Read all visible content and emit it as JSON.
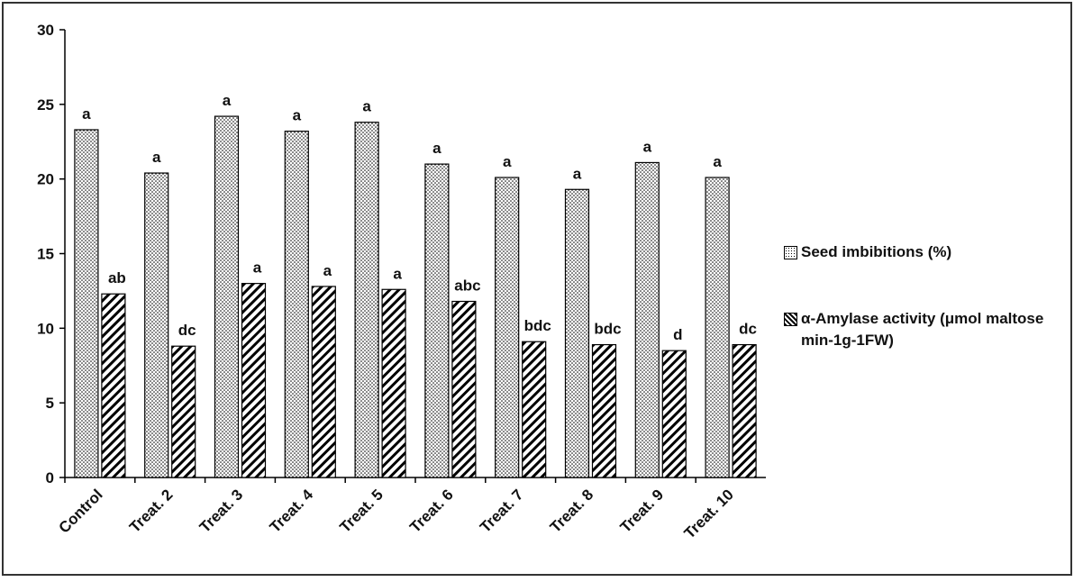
{
  "chart_data": {
    "type": "bar",
    "categories": [
      "Control",
      "Treat. 2",
      "Treat. 3",
      "Treat. 4",
      "Treat. 5",
      "Treat. 6",
      "Treat. 7",
      "Treat. 8",
      "Treat. 9",
      "Treat. 10"
    ],
    "series": [
      {
        "name": "Seed imbibitions (%)",
        "color": "#000000",
        "values": [
          23.3,
          20.4,
          24.2,
          23.2,
          23.8,
          21.0,
          20.1,
          19.3,
          21.1,
          20.1
        ],
        "letters": [
          "a",
          "a",
          "a",
          "a",
          "a",
          "a",
          "a",
          "a",
          "a",
          "a"
        ]
      },
      {
        "name": "α-Amylase activity (μmol maltose min-1g-1FW)",
        "color": "#000000",
        "values": [
          12.3,
          8.8,
          13.0,
          12.8,
          12.6,
          11.8,
          9.1,
          8.9,
          8.5,
          8.9
        ],
        "letters": [
          "ab",
          "dc",
          "a",
          "a",
          "a",
          "abc",
          "bdc",
          "bdc",
          "d",
          "dc"
        ]
      }
    ],
    "ylim": [
      0,
      30
    ],
    "yticks": [
      0,
      5,
      10,
      15,
      20,
      25,
      30
    ],
    "grid": false,
    "legend": "right"
  }
}
